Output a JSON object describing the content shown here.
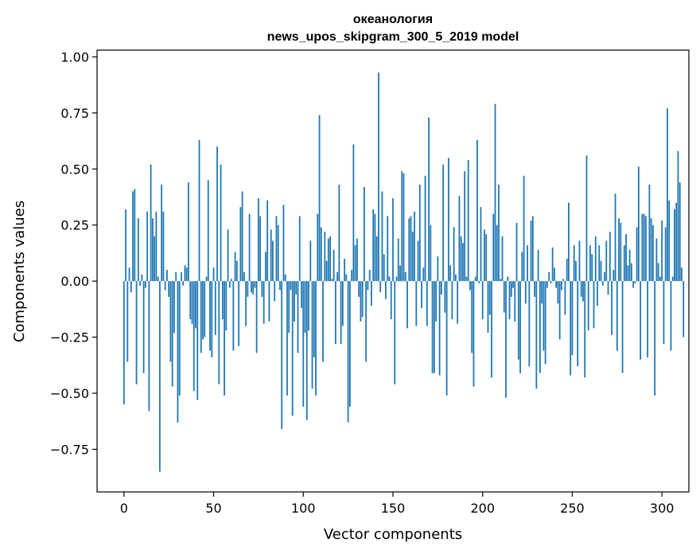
{
  "chart_data": {
    "type": "bar",
    "title_line1": "океанология",
    "title_line2": "news_upos_skipgram_300_5_2019 model",
    "xlabel": "Vector components",
    "ylabel": "Components values",
    "xlim": [
      -15,
      315
    ],
    "ylim": [
      -0.94,
      1.03
    ],
    "x_ticks": [
      0,
      50,
      100,
      150,
      200,
      250,
      300
    ],
    "x_tick_labels": [
      "0",
      "50",
      "100",
      "150",
      "200",
      "250",
      "300"
    ],
    "y_ticks": [
      -0.75,
      -0.5,
      -0.25,
      0.0,
      0.25,
      0.5,
      0.75,
      1.0
    ],
    "y_tick_labels": [
      "−0.75",
      "−0.50",
      "−0.25",
      "0.00",
      "0.25",
      "0.50",
      "0.75",
      "1.00"
    ],
    "bar_color": "#1f77b4",
    "values": [
      -0.55,
      0.32,
      -0.36,
      0.06,
      -0.05,
      0.4,
      0.41,
      -0.46,
      0.28,
      -0.02,
      0.03,
      -0.41,
      -0.03,
      0.31,
      -0.58,
      0.52,
      0.28,
      0.2,
      0.31,
      0.02,
      -0.85,
      0.43,
      0.31,
      -0.04,
      0.05,
      -0.07,
      -0.36,
      -0.47,
      -0.23,
      0.04,
      -0.63,
      -0.51,
      0.04,
      -0.02,
      0.07,
      0.06,
      0.44,
      -0.17,
      -0.19,
      -0.49,
      -0.21,
      -0.53,
      0.63,
      -0.32,
      -0.26,
      -0.25,
      0.02,
      0.45,
      -0.31,
      -0.34,
      0.06,
      -0.24,
      0.6,
      -0.46,
      0.52,
      -0.17,
      -0.51,
      -0.22,
      0.23,
      -0.03,
      0.01,
      -0.31,
      0.13,
      0.09,
      -0.29,
      0.33,
      0.4,
      0.04,
      -0.2,
      -0.07,
      0.3,
      -0.05,
      -0.06,
      -0.03,
      -0.32,
      0.37,
      0.29,
      -0.07,
      -0.19,
      0.13,
      0.36,
      -0.18,
      0.23,
      0.18,
      -0.09,
      0.29,
      0.25,
      -0.04,
      -0.66,
      0.34,
      0.03,
      -0.51,
      -0.23,
      -0.04,
      -0.6,
      -0.18,
      -0.06,
      -0.32,
      0.29,
      -0.12,
      -0.56,
      -0.23,
      -0.62,
      -0.22,
      0.18,
      -0.48,
      -0.34,
      -0.51,
      0.3,
      0.74,
      0.24,
      -0.36,
      0.22,
      0.09,
      0.19,
      0.2,
      0.01,
      0.14,
      -0.28,
      0.04,
      0.43,
      -0.28,
      -0.2,
      0.1,
      0.03,
      -0.63,
      -0.56,
      0.05,
      0.61,
      0.16,
      0.19,
      -0.07,
      -0.18,
      -0.16,
      0.42,
      -0.36,
      -0.04,
      0.05,
      -0.11,
      0.32,
      0.3,
      0.2,
      0.93,
      -0.05,
      0.4,
      0.12,
      -0.08,
      0.29,
      0.02,
      -0.17,
      0.37,
      -0.46,
      0.02,
      0.19,
      0.07,
      0.49,
      0.48,
      0.04,
      -0.21,
      0.28,
      0.29,
      0.22,
      0.31,
      -0.2,
      0.18,
      0.43,
      -0.12,
      0.06,
      0.47,
      -0.2,
      0.73,
      0.25,
      -0.41,
      -0.41,
      -0.18,
      0.11,
      -0.42,
      -0.06,
      0.52,
      -0.14,
      -0.51,
      0.55,
      0.07,
      -0.17,
      0.24,
      0.03,
      -0.19,
      0.38,
      0.2,
      0.17,
      0.49,
      0.02,
      0.54,
      -0.04,
      -0.32,
      -0.47,
      0.02,
      0.63,
      -0.01,
      0.33,
      -0.17,
      0.23,
      0.21,
      -0.23,
      -0.15,
      -0.43,
      0.3,
      0.79,
      0.25,
      0.43,
      0.01,
      0.2,
      -0.14,
      -0.52,
      0.02,
      -0.17,
      -0.07,
      -0.03,
      -0.18,
      0.26,
      -0.35,
      -0.41,
      0.13,
      0.47,
      -0.1,
      0.16,
      -0.38,
      0.27,
      0.29,
      -0.07,
      -0.48,
      0.14,
      -0.41,
      -0.1,
      -0.31,
      -0.37,
      -0.03,
      0.04,
      -0.01,
      0.15,
      0.06,
      -0.03,
      -0.1,
      -0.26,
      -0.04,
      0.01,
      -0.15,
      0.1,
      0.35,
      -0.42,
      -0.33,
      0.16,
      0.09,
      -0.38,
      0.18,
      -0.07,
      -0.09,
      -0.43,
      0.56,
      -0.22,
      0.16,
      0.12,
      -0.21,
      0.2,
      -0.11,
      0.16,
      0.09,
      -0.02,
      0.04,
      0.18,
      -0.06,
      0.22,
      -0.24,
      0.05,
      0.39,
      -0.31,
      0.28,
      0.26,
      -0.41,
      0.16,
      0.21,
      0.07,
      0.14,
      0.08,
      -0.03,
      -0.01,
      0.24,
      0.51,
      -0.35,
      0.3,
      0.3,
      0.29,
      -0.34,
      0.43,
      0.28,
      0.25,
      -0.51,
      0.19,
      0.08,
      0.02,
      0.27,
      -0.28,
      0.24,
      0.77,
      0.36,
      -0.31,
      0.02,
      0.32,
      0.35,
      0.58,
      0.44,
      0.06,
      -0.25
    ]
  }
}
